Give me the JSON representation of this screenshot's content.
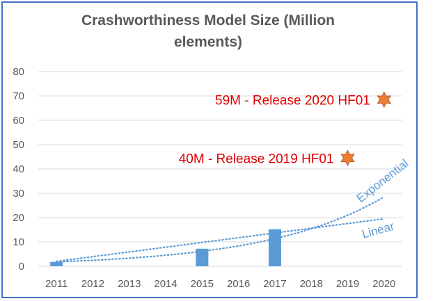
{
  "chart_data": {
    "type": "bar",
    "title_line1": "Crashworthiness Model Size (Million",
    "title_line2": "elements)",
    "categories": [
      "2011",
      "2012",
      "2013",
      "2014",
      "2015",
      "2016",
      "2017",
      "2018",
      "2019",
      "2020"
    ],
    "values": [
      1.8,
      null,
      null,
      null,
      7.2,
      null,
      15.2,
      null,
      null,
      null
    ],
    "ylim": [
      0,
      80
    ],
    "yticks": [
      0,
      10,
      20,
      30,
      40,
      50,
      60,
      70,
      80
    ],
    "grid": true,
    "bar_color": "#5b9bd5",
    "trendlines": [
      {
        "name": "Linear",
        "type": "linear",
        "x_start": "2011",
        "y_start": 2,
        "x_end": "2020",
        "y_end": 19.5
      },
      {
        "name": "Exponential",
        "type": "exponential",
        "x_start": "2011",
        "y_start": 1.8,
        "x_end": "2020",
        "y_end": 28.5
      }
    ],
    "annotations": [
      {
        "text": "59M - Release 2020 HF01",
        "x": "2020",
        "y": 68.5,
        "marker": "star",
        "marker_color": "#ed7d31"
      },
      {
        "text": "40M - Release 2019 HF01",
        "x": "2019",
        "y": 44.5,
        "marker": "star",
        "marker_color": "#ed7d31"
      }
    ]
  }
}
